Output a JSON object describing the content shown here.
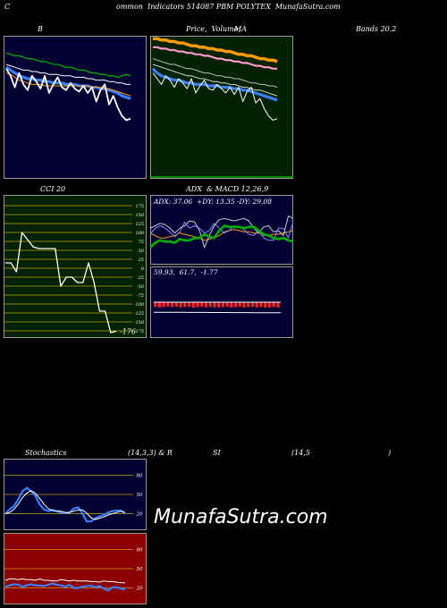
{
  "header": {
    "left": "C",
    "center": "ommon  Indicators 514087 PBM POLYTEX  MunafaSutra.com"
  },
  "titles": {
    "bb_b": "B",
    "price_a": "Price,  Volume,",
    "price_b": "MA",
    "price_c": "Bands 20.2",
    "cci": "CCI 20",
    "adx_macd": "ADX  & MACD 12,26,9",
    "adx_values": "ADX: 37.06  +DY: 13.35 -DY: 29.08",
    "macd_values": "59.93,  61.7,  -1.77",
    "stoch": "Stochastics",
    "stoch_params": "(14,3,3) & R",
    "rsi": "SI",
    "rsi_params": "(14,5",
    "rsi_close": ")"
  },
  "watermark": "MunafaSutra.com",
  "colors": {
    "bb_bg": "#000033",
    "price_bg": "#002200",
    "cci_bg": "#002200",
    "adx_bg": "#000033",
    "stoch_bg": "#000033",
    "rsi_bg": "#8b0000",
    "green_line": "#00aa00",
    "blue_line": "#3a7fff",
    "orange_line": "#ff9900",
    "pink_line": "#ff99cc"
  },
  "chart_data": [
    {
      "type": "line",
      "name": "bollinger-bands",
      "series": [
        {
          "values": [
            88,
            87,
            86,
            86,
            85,
            84,
            84,
            83,
            82,
            82,
            81,
            80,
            80,
            79,
            78,
            78,
            77,
            76,
            76,
            75,
            74,
            74,
            73,
            73,
            72,
            72,
            71,
            72,
            73,
            72
          ]
        },
        {
          "values": [
            80,
            79,
            78,
            77,
            76,
            76,
            75,
            75,
            74,
            74,
            73,
            73,
            73,
            72,
            72,
            72,
            71,
            71,
            71,
            70,
            70,
            69,
            69,
            69,
            68,
            68,
            67,
            67,
            66,
            66
          ]
        },
        {
          "values": [
            78,
            76,
            74,
            72,
            71,
            70,
            70,
            69,
            69,
            68,
            68,
            67,
            67,
            67,
            66,
            66,
            66,
            65,
            65,
            65,
            64,
            64,
            63,
            63,
            62,
            61,
            60,
            58,
            57,
            56
          ]
        },
        {
          "values": [
            74,
            73,
            71,
            69,
            68,
            67,
            66,
            66,
            66,
            65,
            65,
            65,
            65,
            65,
            65,
            65,
            65,
            65,
            65,
            65,
            64,
            64,
            64,
            63,
            63,
            62,
            61,
            60,
            59,
            58
          ]
        },
        {
          "values": [
            77,
            72,
            64,
            74,
            66,
            62,
            72,
            68,
            63,
            72,
            60,
            66,
            71,
            64,
            62,
            67,
            63,
            61,
            65,
            60,
            64,
            54,
            62,
            66,
            52,
            58,
            50,
            44,
            41,
            42
          ]
        }
      ]
    },
    {
      "type": "line",
      "name": "price-volume-ma",
      "series": [
        {
          "values": [
            98,
            98,
            97,
            97,
            96,
            96,
            95,
            95,
            94,
            93,
            93,
            92,
            92,
            91,
            91,
            90,
            90,
            89,
            89,
            88,
            87,
            87,
            86,
            86,
            85,
            84,
            84,
            83,
            83,
            82
          ]
        },
        {
          "values": [
            92,
            92,
            91,
            91,
            90,
            90,
            89,
            89,
            88,
            88,
            87,
            87,
            86,
            86,
            85,
            84,
            84,
            83,
            83,
            82,
            82,
            81,
            81,
            80,
            79,
            79,
            78,
            78,
            77,
            77
          ]
        },
        {
          "values": [
            84,
            83,
            82,
            81,
            80,
            80,
            79,
            78,
            77,
            77,
            76,
            75,
            74,
            74,
            73,
            72,
            72,
            71,
            71,
            70,
            70,
            69,
            68,
            67,
            67,
            66,
            66,
            65,
            65,
            64
          ]
        },
        {
          "values": [
            80,
            79,
            78,
            77,
            76,
            75,
            74,
            73,
            72,
            72,
            71,
            70,
            70,
            69,
            68,
            68,
            67,
            67,
            66,
            66,
            65,
            64,
            64,
            63,
            62,
            62,
            61,
            60,
            59,
            58
          ]
        },
        {
          "values": [
            77,
            74,
            72,
            71,
            70,
            69,
            69,
            68,
            67,
            67,
            66,
            66,
            66,
            65,
            65,
            65,
            64,
            64,
            64,
            63,
            63,
            62,
            62,
            61,
            60,
            59,
            58,
            57,
            56,
            55
          ]
        },
        {
          "values": [
            74,
            70,
            66,
            72,
            69,
            64,
            70,
            67,
            63,
            70,
            60,
            65,
            69,
            63,
            62,
            66,
            63,
            60,
            64,
            59,
            64,
            54,
            61,
            64,
            53,
            56,
            49,
            44,
            41,
            42
          ]
        }
      ]
    },
    {
      "type": "line",
      "name": "cci",
      "ylim": [
        -175,
        175
      ],
      "ticks": [
        175,
        150,
        125,
        100,
        75,
        50,
        25,
        0,
        -25,
        -50,
        -75,
        -100,
        -125,
        -150,
        -175
      ],
      "series": [
        {
          "values": [
            15,
            15,
            -10,
            100,
            80,
            60,
            55,
            55,
            55,
            55,
            -50,
            -25,
            -25,
            -40,
            -40,
            15,
            -40,
            -120,
            -120,
            -180,
            -176
          ]
        }
      ],
      "last_label": "-176"
    },
    {
      "type": "line",
      "name": "adx",
      "series": [
        {
          "values": [
            14,
            18,
            20,
            19,
            19,
            18,
            21,
            20,
            20,
            22,
            22,
            25,
            23,
            22,
            28,
            32,
            31,
            31,
            31,
            30,
            31,
            31,
            28,
            25,
            24,
            22,
            21,
            22,
            20,
            19
          ]
        },
        {
          "values": [
            26,
            24,
            22,
            22,
            23,
            24,
            26,
            25,
            24,
            23,
            22,
            20,
            21,
            22,
            24,
            27,
            28,
            29,
            28,
            27,
            27,
            26,
            26,
            24,
            24,
            25,
            25,
            26,
            27,
            28
          ]
        },
        {
          "values": [
            30,
            32,
            34,
            33,
            30,
            26,
            30,
            32,
            36,
            35,
            28,
            14,
            24,
            32,
            37,
            38,
            37,
            36,
            37,
            38,
            36,
            30,
            26,
            31,
            32,
            27,
            28,
            24,
            40,
            38
          ]
        },
        {
          "values": [
            25,
            30,
            32,
            30,
            27,
            23,
            27,
            35,
            30,
            32,
            30,
            26,
            28,
            34,
            30,
            26,
            28,
            32,
            31,
            29,
            25,
            24,
            28,
            22,
            20,
            20,
            30,
            30,
            22,
            35
          ]
        }
      ]
    },
    {
      "type": "bar",
      "name": "macd-histogram",
      "values": [
        -1.6,
        -1.8,
        -1.7,
        -1.5,
        -1.7,
        -1.6,
        -1.8,
        -1.7,
        -1.6,
        -1.9,
        -1.7,
        -1.6,
        -1.8,
        -1.7,
        -1.8,
        -1.9,
        -1.7,
        -1.6,
        -1.8,
        -1.7,
        -1.6,
        -1.8,
        -1.7,
        -1.6,
        -1.8,
        -1.7,
        -1.9,
        -1.8,
        -1.7,
        -1.77
      ]
    },
    {
      "type": "line",
      "name": "stochastics",
      "ylim": [
        0,
        100
      ],
      "ticks": [
        80,
        50,
        20
      ],
      "series": [
        {
          "values": [
            20,
            27,
            32,
            42,
            55,
            60,
            55,
            48,
            35,
            27,
            24,
            26,
            24,
            22,
            21,
            22,
            28,
            30,
            21,
            8,
            8,
            13,
            16,
            18,
            22,
            24,
            25,
            25,
            20
          ]
        },
        {
          "values": [
            20,
            22,
            27,
            35,
            45,
            52,
            56,
            52,
            44,
            35,
            28,
            25,
            24,
            24,
            22,
            22,
            24,
            26,
            26,
            21,
            14,
            11,
            13,
            15,
            18,
            20,
            22,
            24,
            22
          ]
        }
      ]
    },
    {
      "type": "line",
      "name": "rsi",
      "ylim": [
        0,
        100
      ],
      "ticks": [
        80,
        50,
        20
      ],
      "series": [
        {
          "values": [
            32,
            34,
            34,
            33,
            34,
            33,
            33,
            32,
            34,
            32,
            32,
            31,
            31,
            33,
            32,
            31,
            32,
            31,
            31,
            31,
            30,
            30,
            29,
            31,
            30,
            30,
            29,
            28,
            28
          ]
        },
        {
          "values": [
            22,
            24,
            26,
            25,
            22,
            24,
            26,
            24,
            24,
            23,
            25,
            27,
            25,
            24,
            22,
            25,
            20,
            20,
            22,
            23,
            24,
            21,
            23,
            19,
            16,
            21,
            21,
            19,
            18
          ]
        }
      ]
    }
  ]
}
